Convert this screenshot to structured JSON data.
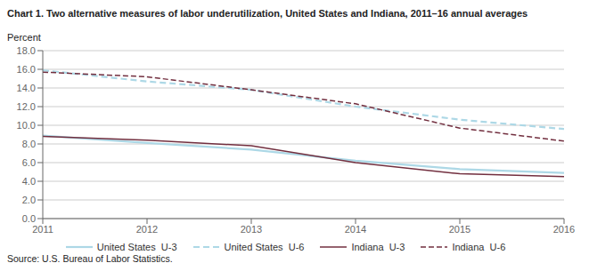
{
  "chart_data": {
    "type": "line",
    "title": "Chart 1. Two alternative measures of labor underutilization, United States and Indiana, 2011–16 annual averages",
    "y_label": "Percent",
    "annotations": [
      "Source: U.S. Bureau of Labor Statistics."
    ],
    "x": [
      2011,
      2012,
      2013,
      2014,
      2015,
      2016
    ],
    "xlim": [
      2011,
      2016
    ],
    "xticks": [
      2011,
      2012,
      2013,
      2014,
      2015,
      2016
    ],
    "ylim": [
      0,
      18.0
    ],
    "yticks": [
      {
        "value": 0.0,
        "label": "0.0"
      },
      {
        "value": 2.0,
        "label": "2.0"
      },
      {
        "value": 4.0,
        "label": "4.0"
      },
      {
        "value": 6.0,
        "label": "6.0"
      },
      {
        "value": 8.0,
        "label": "8.0"
      },
      {
        "value": 10.0,
        "label": "10.0"
      },
      {
        "value": 12.0,
        "label": "12.0"
      },
      {
        "value": 14.0,
        "label": "14.0"
      },
      {
        "value": 16.0,
        "label": "16.0"
      },
      {
        "value": 18.0,
        "label": "18.0"
      }
    ],
    "grid": true,
    "legend": "bottom",
    "series": [
      {
        "name": "United States  U-3",
        "color": "#add8e6",
        "line_style": "solid",
        "values": [
          8.9,
          8.1,
          7.4,
          6.2,
          5.3,
          4.9
        ]
      },
      {
        "name": "United States  U-6",
        "color": "#add8e6",
        "line_style": "dashed",
        "values": [
          15.9,
          14.7,
          13.8,
          12.0,
          10.6,
          9.6
        ]
      },
      {
        "name": "Indiana  U-3",
        "color": "#722F3F",
        "line_style": "solid",
        "values": [
          8.8,
          8.4,
          7.8,
          6.0,
          4.8,
          4.5
        ]
      },
      {
        "name": "Indiana  U-6",
        "color": "#722F3F",
        "line_style": "dashed",
        "values": [
          15.7,
          15.2,
          13.8,
          12.3,
          9.7,
          8.3
        ]
      }
    ]
  }
}
